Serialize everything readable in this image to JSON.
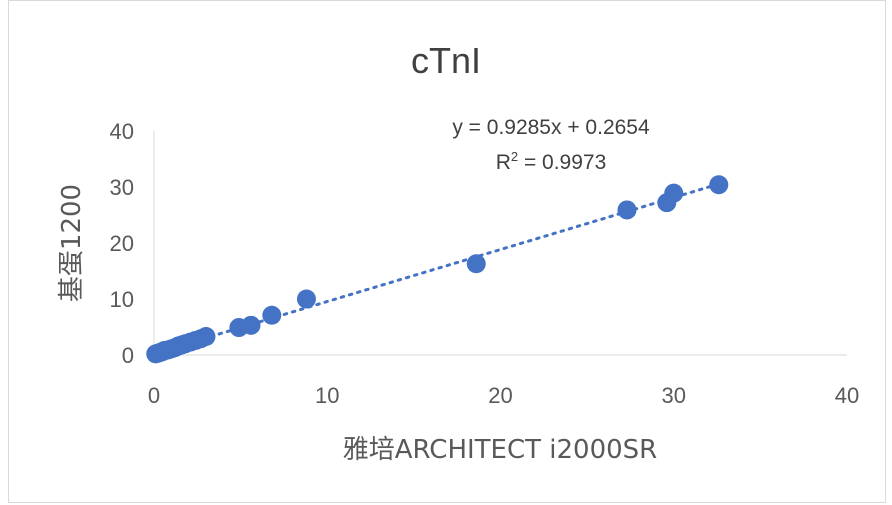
{
  "chart_data": {
    "type": "scatter",
    "title": "cTnI",
    "xlabel": "雅培ARCHITECT i2000SR",
    "ylabel": "基蛋1200",
    "xlim": [
      0,
      40
    ],
    "ylim": [
      0,
      40
    ],
    "xticks": [
      "0",
      "10",
      "20",
      "30",
      "40"
    ],
    "yticks": [
      "0",
      "10",
      "20",
      "30",
      "40"
    ],
    "grid": false,
    "point_color": "#4472C4",
    "trendline": {
      "type": "linear",
      "slope": 0.9285,
      "intercept": 0.2654,
      "equation": "y = 0.9285x + 0.2654",
      "r2_label": "R",
      "r2_sup": "2",
      "r2_value": " = 0.9973",
      "style": "dotted"
    },
    "points": [
      [
        0.1,
        0.2
      ],
      [
        0.2,
        0.3
      ],
      [
        0.3,
        0.4
      ],
      [
        0.4,
        0.5
      ],
      [
        0.5,
        0.6
      ],
      [
        0.6,
        0.8
      ],
      [
        0.8,
        0.9
      ],
      [
        1.0,
        1.1
      ],
      [
        1.2,
        1.3
      ],
      [
        1.4,
        1.6
      ],
      [
        1.6,
        1.8
      ],
      [
        1.8,
        2.0
      ],
      [
        2.1,
        2.3
      ],
      [
        2.4,
        2.6
      ],
      [
        2.7,
        2.9
      ],
      [
        3.0,
        3.3
      ],
      [
        4.9,
        4.9
      ],
      [
        5.6,
        5.3
      ],
      [
        6.8,
        7.1
      ],
      [
        8.8,
        10.0
      ],
      [
        18.6,
        16.3
      ],
      [
        27.3,
        25.9
      ],
      [
        29.6,
        27.2
      ],
      [
        30.0,
        28.9
      ],
      [
        32.6,
        30.4
      ]
    ]
  }
}
